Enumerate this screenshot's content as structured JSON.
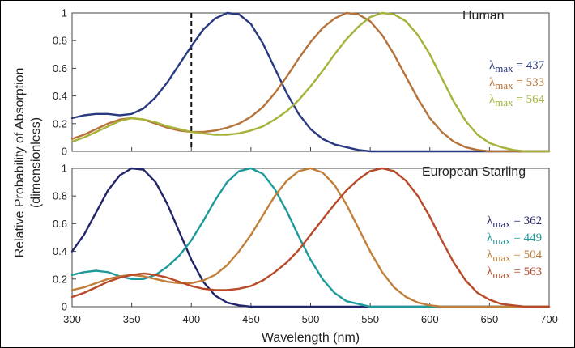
{
  "chart_data": [
    {
      "type": "line",
      "title": "Human",
      "xlabel": "Wavelength (nm)",
      "ylabel": "Relative Probability of Absorption",
      "ylabel_line2": "(dimensionless)",
      "xlim": [
        300,
        700
      ],
      "ylim": [
        0,
        1
      ],
      "xticks": [
        "300",
        "350",
        "400",
        "450",
        "500",
        "550",
        "600",
        "650",
        "700"
      ],
      "yticks": [
        "0",
        "0.2",
        "0.4",
        "0.6",
        "0.8",
        "1"
      ],
      "x": [
        300,
        310,
        320,
        330,
        340,
        350,
        360,
        370,
        380,
        390,
        400,
        410,
        420,
        430,
        440,
        450,
        460,
        470,
        480,
        490,
        500,
        510,
        520,
        530,
        540,
        550,
        560,
        570,
        580,
        590,
        600,
        610,
        620,
        630,
        640,
        650,
        660,
        670,
        680,
        690,
        700
      ],
      "series": [
        {
          "lambda_label": "λmax = 437",
          "peak": 437,
          "color": "#2a3a80",
          "values": [
            0.24,
            0.26,
            0.27,
            0.27,
            0.26,
            0.27,
            0.31,
            0.39,
            0.5,
            0.63,
            0.76,
            0.88,
            0.96,
            1.0,
            0.99,
            0.92,
            0.78,
            0.6,
            0.42,
            0.27,
            0.16,
            0.09,
            0.05,
            0.03,
            0.01,
            0,
            0,
            0,
            0,
            0,
            0,
            0,
            0,
            0,
            0,
            0,
            0,
            0,
            0,
            0,
            0
          ]
        },
        {
          "lambda_label": "λmax = 533",
          "peak": 533,
          "color": "#b5733a",
          "values": [
            0.09,
            0.12,
            0.16,
            0.2,
            0.23,
            0.24,
            0.23,
            0.2,
            0.17,
            0.15,
            0.14,
            0.14,
            0.15,
            0.17,
            0.2,
            0.25,
            0.32,
            0.42,
            0.54,
            0.67,
            0.79,
            0.89,
            0.96,
            1.0,
            0.99,
            0.94,
            0.84,
            0.7,
            0.54,
            0.38,
            0.24,
            0.14,
            0.07,
            0.03,
            0.01,
            0,
            0,
            0,
            0,
            0,
            0
          ]
        },
        {
          "lambda_label": "λmax = 564",
          "peak": 564,
          "color": "#a6b23a",
          "values": [
            0.07,
            0.1,
            0.14,
            0.18,
            0.22,
            0.24,
            0.23,
            0.21,
            0.18,
            0.16,
            0.14,
            0.13,
            0.12,
            0.12,
            0.13,
            0.15,
            0.18,
            0.23,
            0.29,
            0.37,
            0.47,
            0.58,
            0.7,
            0.81,
            0.9,
            0.97,
            1.0,
            0.99,
            0.94,
            0.84,
            0.7,
            0.53,
            0.36,
            0.22,
            0.12,
            0.06,
            0.03,
            0.01,
            0,
            0,
            0
          ]
        }
      ],
      "annotations": [
        {
          "type": "dashed-vertical-line",
          "x": 400,
          "color": "#111111"
        }
      ]
    },
    {
      "type": "line",
      "title": "European Starling",
      "xlabel": "Wavelength (nm)",
      "ylabel": "Relative Probability of Absorption",
      "ylabel_line2": "(dimensionless)",
      "xlim": [
        300,
        700
      ],
      "ylim": [
        0,
        1
      ],
      "xticks": [
        "300",
        "350",
        "400",
        "450",
        "500",
        "550",
        "600",
        "650",
        "700"
      ],
      "yticks": [
        "0",
        "0.2",
        "0.4",
        "0.6",
        "0.8",
        "1"
      ],
      "x": [
        300,
        310,
        320,
        330,
        340,
        350,
        360,
        370,
        380,
        390,
        400,
        410,
        420,
        430,
        440,
        450,
        460,
        470,
        480,
        490,
        500,
        510,
        520,
        530,
        540,
        550,
        560,
        570,
        580,
        590,
        600,
        610,
        620,
        630,
        640,
        650,
        660,
        670,
        680,
        690,
        700
      ],
      "series": [
        {
          "lambda_label": "λmax = 362",
          "peak": 362,
          "color": "#22256a",
          "values": [
            0.4,
            0.52,
            0.68,
            0.84,
            0.95,
            1.0,
            0.99,
            0.9,
            0.74,
            0.54,
            0.34,
            0.18,
            0.08,
            0.03,
            0.01,
            0,
            0,
            0,
            0,
            0,
            0,
            0,
            0,
            0,
            0,
            0,
            0,
            0,
            0,
            0,
            0,
            0,
            0,
            0,
            0,
            0,
            0,
            0,
            0,
            0,
            0
          ]
        },
        {
          "lambda_label": "λmax = 449",
          "peak": 449,
          "color": "#1f9a9a",
          "values": [
            0.23,
            0.25,
            0.26,
            0.25,
            0.22,
            0.2,
            0.2,
            0.23,
            0.29,
            0.37,
            0.48,
            0.62,
            0.77,
            0.9,
            0.98,
            1.0,
            0.96,
            0.85,
            0.69,
            0.51,
            0.34,
            0.2,
            0.1,
            0.04,
            0.02,
            0,
            0,
            0,
            0,
            0,
            0,
            0,
            0,
            0,
            0,
            0,
            0,
            0,
            0,
            0,
            0
          ]
        },
        {
          "lambda_label": "λmax = 504",
          "peak": 504,
          "color": "#c0803a",
          "values": [
            0.12,
            0.14,
            0.17,
            0.2,
            0.22,
            0.23,
            0.22,
            0.2,
            0.18,
            0.17,
            0.17,
            0.19,
            0.23,
            0.3,
            0.4,
            0.52,
            0.66,
            0.8,
            0.91,
            0.98,
            1.0,
            0.97,
            0.88,
            0.74,
            0.57,
            0.4,
            0.25,
            0.14,
            0.07,
            0.03,
            0.01,
            0,
            0,
            0,
            0,
            0,
            0,
            0,
            0,
            0,
            0
          ]
        },
        {
          "lambda_label": "λmax = 563",
          "peak": 563,
          "color": "#b84a2a",
          "values": [
            0.07,
            0.1,
            0.14,
            0.18,
            0.21,
            0.23,
            0.24,
            0.23,
            0.21,
            0.18,
            0.15,
            0.13,
            0.12,
            0.12,
            0.13,
            0.15,
            0.19,
            0.25,
            0.32,
            0.41,
            0.52,
            0.63,
            0.74,
            0.84,
            0.92,
            0.98,
            1.0,
            0.98,
            0.91,
            0.8,
            0.65,
            0.48,
            0.32,
            0.19,
            0.1,
            0.05,
            0.02,
            0.01,
            0,
            0,
            0
          ]
        }
      ]
    }
  ]
}
